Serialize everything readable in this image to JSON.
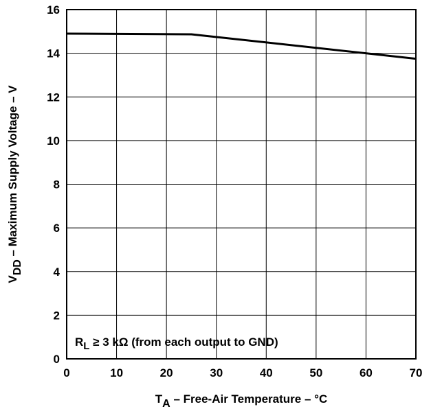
{
  "chart_data": {
    "type": "line",
    "title": "",
    "xlabel": {
      "symbol": "T",
      "subscript": "A",
      "text": " – Free-Air Temperature – °C"
    },
    "ylabel": {
      "symbol": "V",
      "subscript": "DD",
      "text": " – Maximum Supply Voltage – V"
    },
    "xlim": [
      0,
      70
    ],
    "ylim": [
      0,
      16
    ],
    "x_ticks": [
      "0",
      "10",
      "20",
      "30",
      "40",
      "50",
      "60",
      "70"
    ],
    "y_ticks": [
      "0",
      "2",
      "4",
      "6",
      "8",
      "10",
      "12",
      "14",
      "16"
    ],
    "grid": true,
    "legend": "none",
    "annotation": {
      "symbol": "R",
      "subscript": "L",
      "text": " ≥ 3 kΩ (from each output to GND)"
    },
    "series": [
      {
        "color": "#000000",
        "x": [
          0,
          25,
          70
        ],
        "y": [
          14.9,
          14.87,
          13.75
        ]
      }
    ]
  }
}
